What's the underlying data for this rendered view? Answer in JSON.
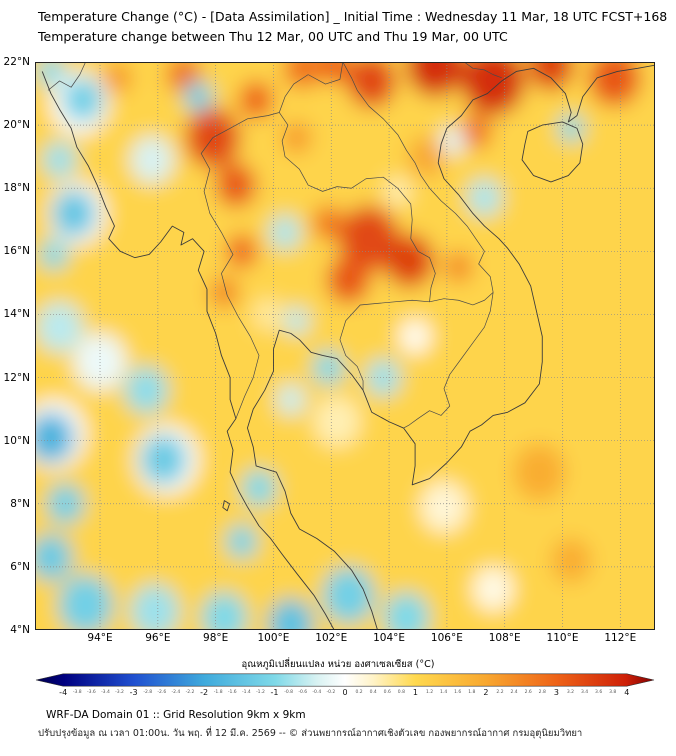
{
  "header": {
    "title_line1": "Temperature Change (°C) - [Data Assimilation] _ Initial Time : Wednesday 11 Mar, 18 UTC FCST+168",
    "title_line2": "Temperature change between Thu 12 Mar, 00 UTC and Thu 19 Mar, 00 UTC"
  },
  "map": {
    "extent": {
      "lon_min": 91.75,
      "lon_max": 113.2,
      "lat_min": 4,
      "lat_max": 22
    },
    "lon_ticks": [
      94,
      96,
      98,
      100,
      102,
      104,
      106,
      108,
      110,
      112
    ],
    "lat_ticks": [
      4,
      6,
      8,
      10,
      12,
      14,
      16,
      18,
      20,
      22
    ],
    "lon_suffix": "°E",
    "lat_suffix": "°N"
  },
  "colorbar": {
    "label": "อุณหภูมิเปลี่ยนแปลง หน่วย องศาเซลเซียส (°C)",
    "min": -4,
    "max": 4,
    "major_step": 1,
    "minor_step": 0.2,
    "stops": [
      [
        -4.4,
        "#00004D"
      ],
      [
        -4,
        "#000080"
      ],
      [
        -3,
        "#2050D0"
      ],
      [
        -2,
        "#3FAADC"
      ],
      [
        -1,
        "#7FD9E8"
      ],
      [
        -0.4,
        "#D8F2F2"
      ],
      [
        0,
        "#FFFFFF"
      ],
      [
        0.4,
        "#FFF3C8"
      ],
      [
        1,
        "#FFD94F"
      ],
      [
        2,
        "#F8A830"
      ],
      [
        3,
        "#EE6418"
      ],
      [
        4,
        "#CE2008"
      ],
      [
        4.4,
        "#7F0000"
      ]
    ]
  },
  "chart_data": {
    "type": "heatmap",
    "title": "Temperature change (°C), Thu 12 Mar 00 UTC to Thu 19 Mar 00 UTC",
    "units": "°C",
    "value_range": [
      -4,
      4
    ],
    "lon_range": [
      91.75,
      113.2
    ],
    "lat_range": [
      4,
      22
    ],
    "base_value_c": 1.1,
    "anomaly_columns": [
      "lon",
      "lat",
      "value_c",
      "radius_deg"
    ],
    "anomaly_centers": [
      [
        97.9,
        19.6,
        3.4,
        0.95
      ],
      [
        98.7,
        18.1,
        3.2,
        0.7
      ],
      [
        99.4,
        20.8,
        3.0,
        0.6
      ],
      [
        96.9,
        21.6,
        2.8,
        0.6
      ],
      [
        101.0,
        21.8,
        2.8,
        0.65
      ],
      [
        102.1,
        21.9,
        3.0,
        0.6
      ],
      [
        103.4,
        21.4,
        3.4,
        0.85
      ],
      [
        105.6,
        21.9,
        3.8,
        1.0
      ],
      [
        107.6,
        21.4,
        3.8,
        1.1
      ],
      [
        109.6,
        21.9,
        3.5,
        0.8
      ],
      [
        111.8,
        21.5,
        3.2,
        0.9
      ],
      [
        94.6,
        21.5,
        2.2,
        0.5
      ],
      [
        103.3,
        16.4,
        3.4,
        1.05
      ],
      [
        104.7,
        15.7,
        3.5,
        0.85
      ],
      [
        102.6,
        15.1,
        3.2,
        0.75
      ],
      [
        101.9,
        16.9,
        2.7,
        0.55
      ],
      [
        98.9,
        16.0,
        2.9,
        0.55
      ],
      [
        98.3,
        14.7,
        2.5,
        0.5
      ],
      [
        106.4,
        15.5,
        2.4,
        0.5
      ],
      [
        107.0,
        19.8,
        2.8,
        0.55
      ],
      [
        105.3,
        19.0,
        2.0,
        0.65
      ],
      [
        110.3,
        6.2,
        1.9,
        0.7
      ],
      [
        109.2,
        9.0,
        1.9,
        0.9
      ],
      [
        100.8,
        19.6,
        2.2,
        0.5
      ],
      [
        93.3,
        20.7,
        0,
        1.0
      ],
      [
        93.4,
        20.8,
        -1.2,
        0.7
      ],
      [
        92.3,
        21.7,
        -0.9,
        0.5
      ],
      [
        92.6,
        18.9,
        -0.8,
        0.6
      ],
      [
        93.2,
        17.2,
        0,
        1.0
      ],
      [
        93.1,
        17.2,
        -1.4,
        0.75
      ],
      [
        92.4,
        15.9,
        -1.0,
        0.5
      ],
      [
        92.6,
        13.6,
        -0.6,
        0.8
      ],
      [
        94.0,
        12.5,
        -0.2,
        0.9
      ],
      [
        92.4,
        10.2,
        0,
        1.1
      ],
      [
        92.3,
        10.1,
        -1.8,
        0.8
      ],
      [
        92.8,
        8.0,
        -1.2,
        0.65
      ],
      [
        92.3,
        6.3,
        -1.3,
        0.75
      ],
      [
        93.5,
        4.8,
        -1.2,
        0.95
      ],
      [
        95.9,
        4.6,
        -0.8,
        0.85
      ],
      [
        98.3,
        4.4,
        -1.0,
        0.8
      ],
      [
        100.6,
        4.2,
        -1.5,
        0.8
      ],
      [
        102.6,
        5.1,
        -1.2,
        0.9
      ],
      [
        104.6,
        4.4,
        -1.0,
        0.8
      ],
      [
        96.3,
        9.4,
        0,
        1.1
      ],
      [
        96.2,
        9.4,
        -1.3,
        0.8
      ],
      [
        95.6,
        11.6,
        -0.9,
        0.75
      ],
      [
        99.5,
        8.5,
        -1.0,
        0.6
      ],
      [
        98.9,
        6.8,
        -1.1,
        0.55
      ],
      [
        97.4,
        20.9,
        -1.2,
        0.5
      ],
      [
        95.8,
        18.9,
        -0.4,
        0.75
      ],
      [
        100.4,
        16.6,
        -0.7,
        0.55
      ],
      [
        100.8,
        13.8,
        -0.6,
        0.45
      ],
      [
        101.9,
        12.3,
        -1.0,
        0.55
      ],
      [
        103.8,
        12.0,
        -0.8,
        0.6
      ],
      [
        100.6,
        11.3,
        -0.5,
        0.5
      ],
      [
        107.3,
        17.7,
        -0.7,
        0.6
      ],
      [
        106.2,
        19.5,
        -0.3,
        0.45
      ],
      [
        110.3,
        19.9,
        -1.0,
        0.45
      ],
      [
        104.9,
        13.3,
        0.1,
        0.55
      ],
      [
        102.2,
        10.6,
        0.5,
        0.8
      ],
      [
        105.9,
        7.9,
        0.3,
        0.8
      ],
      [
        107.6,
        5.3,
        0.2,
        0.7
      ],
      [
        104.3,
        17.9,
        0.5,
        0.45
      ],
      [
        99.8,
        14.0,
        0.6,
        0.5
      ]
    ]
  },
  "footer": {
    "line1": "WRF-DA Domain 01 :: Grid Resolution 9km x 9km",
    "line2": "ปรับปรุงข้อมูล ณ เวลา 01:00น. วัน พฤ. ที่ 12 มี.ค. 2569 -- © ส่วนพยากรณ์อากาศเชิงตัวเลข กองพยากรณ์อากาศ กรมอุตุนิยมวิทยา"
  }
}
